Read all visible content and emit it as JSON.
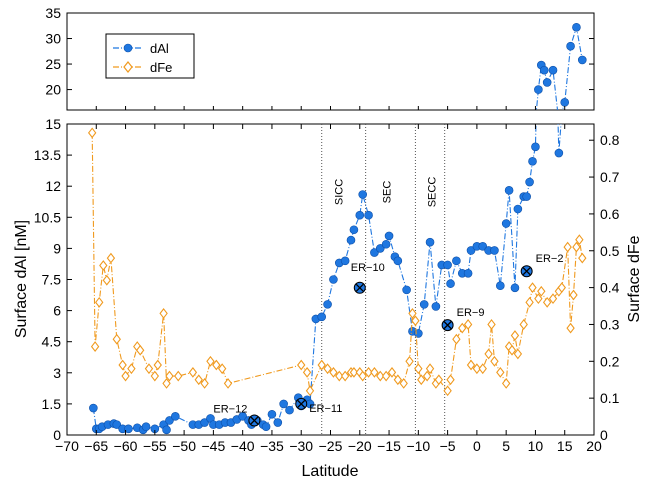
{
  "chart_data": {
    "type": "line",
    "panels": [
      "upper",
      "lower"
    ],
    "xlabel": "Latitude",
    "ylabel_left": "Surface dAl [nM]",
    "ylabel_right": "Surface dFe",
    "xlim": [
      -70,
      20
    ],
    "xticks": [
      -70,
      -65,
      -60,
      -55,
      -50,
      -45,
      -40,
      -35,
      -30,
      -25,
      -20,
      -15,
      -10,
      -5,
      0,
      5,
      10,
      15,
      20
    ],
    "x_tick_labels": [
      "−70",
      "−65",
      "−60",
      "−55",
      "−50",
      "−45",
      "−40",
      "−35",
      "−30",
      "−25",
      "−20",
      "−15",
      "−10",
      "−5",
      "0",
      "5",
      "10",
      "15",
      "20"
    ],
    "upper_ylim": [
      16,
      35
    ],
    "upper_yticks": [
      "20",
      "25",
      "30",
      "35"
    ],
    "lower_ylim": [
      0,
      15
    ],
    "lower_yticks": [
      "0",
      "1.5",
      "3",
      "4.5",
      "6",
      "7.5",
      "9",
      "10.5",
      "12",
      "13.5",
      "15"
    ],
    "right_ylim": [
      0,
      0.844
    ],
    "right_yticks": [
      "0",
      "0.1",
      "0.2",
      "0.3",
      "0.4",
      "0.5",
      "0.6",
      "0.7",
      "0.8"
    ],
    "legend": {
      "position": "top-left",
      "entries": [
        "dAl",
        "dFe"
      ]
    },
    "series": [
      {
        "name": "dAl",
        "axis": "left",
        "color": "#1f77e0",
        "marker": "circle",
        "linestyle": "dash-dot",
        "points": [
          [
            -65.5,
            1.3
          ],
          [
            -65,
            0.3
          ],
          [
            -64.5,
            0.3
          ],
          [
            -64,
            0.4
          ],
          [
            -63,
            0.5
          ],
          [
            -62,
            0.55
          ],
          [
            -61.5,
            0.5
          ],
          [
            -60.5,
            0.3
          ],
          [
            -59.5,
            0.3
          ],
          [
            -58,
            0.35
          ],
          [
            -57,
            0.25
          ],
          [
            -56.5,
            0.4
          ],
          [
            -55,
            0.3
          ],
          [
            -53.5,
            0.5
          ],
          [
            -53,
            0.25
          ],
          [
            -52.5,
            0.7
          ],
          [
            -51.5,
            0.9
          ],
          [
            -48.5,
            0.5
          ],
          [
            -47.5,
            0.5
          ],
          [
            -46.5,
            0.6
          ],
          [
            -45.5,
            0.8
          ],
          [
            -45,
            0.5
          ],
          [
            -44,
            0.5
          ],
          [
            -43,
            0.6
          ],
          [
            -42,
            0.6
          ],
          [
            -41,
            0.75
          ],
          [
            -40,
            0.9
          ],
          [
            -39,
            0.7
          ],
          [
            -38.5,
            0.5
          ],
          [
            -37.5,
            0.7
          ],
          [
            -36.5,
            0.5
          ],
          [
            -36,
            0.4
          ],
          [
            -35,
            1.0
          ],
          [
            -34,
            0.6
          ],
          [
            -33,
            1.5
          ],
          [
            -32,
            1.2
          ],
          [
            -30.5,
            1.8
          ],
          [
            -30,
            1.4
          ],
          [
            -29,
            1.7
          ],
          [
            -28.5,
            1.5
          ],
          [
            -27.5,
            5.6
          ],
          [
            -26.5,
            5.7
          ],
          [
            -25.5,
            6.3
          ],
          [
            -24.5,
            7.5
          ],
          [
            -23.5,
            8.3
          ],
          [
            -22.5,
            8.4
          ],
          [
            -21.5,
            9.4
          ],
          [
            -21,
            9.9
          ],
          [
            -20,
            10.6
          ],
          [
            -19.5,
            11.6
          ],
          [
            -18.5,
            10.6
          ],
          [
            -17.5,
            8.8
          ],
          [
            -16.5,
            9.0
          ],
          [
            -15.5,
            9.2
          ],
          [
            -15,
            9.6
          ],
          [
            -14,
            8.6
          ],
          [
            -13.5,
            8.4
          ],
          [
            -12,
            7.0
          ],
          [
            -11,
            5.0
          ],
          [
            -10,
            4.9
          ],
          [
            -9,
            6.3
          ],
          [
            -8,
            9.3
          ],
          [
            -7,
            6.2
          ],
          [
            -6,
            8.2
          ],
          [
            -5,
            8.2
          ],
          [
            -4.5,
            7.3
          ],
          [
            -3.5,
            8.4
          ],
          [
            -2.5,
            7.8
          ],
          [
            -1.5,
            7.8
          ],
          [
            -1,
            8.9
          ],
          [
            0,
            9.1
          ],
          [
            1,
            9.1
          ],
          [
            2,
            8.9
          ],
          [
            3,
            8.9
          ],
          [
            4,
            7.2
          ],
          [
            5,
            10.2
          ],
          [
            5.5,
            11.8
          ],
          [
            6.5,
            7.1
          ],
          [
            7,
            10.9
          ],
          [
            8,
            11.5
          ],
          [
            8.5,
            11.5
          ],
          [
            9,
            12.2
          ],
          [
            9.5,
            13.2
          ],
          [
            10,
            13.9
          ],
          [
            10.5,
            20
          ],
          [
            11,
            24.8
          ],
          [
            11.5,
            23.8
          ],
          [
            12,
            21.4
          ],
          [
            13,
            23.8
          ],
          [
            14,
            13.6
          ],
          [
            15,
            17.5
          ],
          [
            16,
            28.5
          ],
          [
            17,
            32.2
          ],
          [
            18,
            25.8
          ]
        ]
      },
      {
        "name": "dFe",
        "axis": "right",
        "color": "#f09a1f",
        "marker": "diamond",
        "linestyle": "dash-dot",
        "points": [
          [
            -65.7,
            0.82
          ],
          [
            -65.2,
            0.24
          ],
          [
            -64.5,
            0.36
          ],
          [
            -63.8,
            0.46
          ],
          [
            -63.2,
            0.42
          ],
          [
            -62.5,
            0.48
          ],
          [
            -61.5,
            0.26
          ],
          [
            -60.5,
            0.19
          ],
          [
            -60,
            0.16
          ],
          [
            -59,
            0.18
          ],
          [
            -58,
            0.24
          ],
          [
            -57.5,
            0.23
          ],
          [
            -56,
            0.18
          ],
          [
            -55,
            0.16
          ],
          [
            -54.5,
            0.19
          ],
          [
            -53.5,
            0.33
          ],
          [
            -53,
            0.14
          ],
          [
            -52.5,
            0.16
          ],
          [
            -51,
            0.16
          ],
          [
            -48.5,
            0.17
          ],
          [
            -47.5,
            0.15
          ],
          [
            -46.5,
            0.14
          ],
          [
            -45.5,
            0.2
          ],
          [
            -44.5,
            0.19
          ],
          [
            -43.5,
            0.18
          ],
          [
            -42.5,
            0.14
          ],
          [
            -30,
            0.19
          ],
          [
            -29,
            0.17
          ],
          [
            -28.5,
            0.12
          ],
          [
            -26.5,
            0.19
          ],
          [
            -25.5,
            0.18
          ],
          [
            -24.5,
            0.17
          ],
          [
            -23.5,
            0.16
          ],
          [
            -22.5,
            0.16
          ],
          [
            -21.5,
            0.17
          ],
          [
            -21,
            0.17
          ],
          [
            -20,
            0.17
          ],
          [
            -19.5,
            0.16
          ],
          [
            -18.5,
            0.17
          ],
          [
            -17.5,
            0.17
          ],
          [
            -16.5,
            0.16
          ],
          [
            -15.5,
            0.16
          ],
          [
            -14.5,
            0.17
          ],
          [
            -13.5,
            0.15
          ],
          [
            -12.5,
            0.14
          ],
          [
            -11.5,
            0.2
          ],
          [
            -11,
            0.33
          ],
          [
            -10.5,
            0.31
          ],
          [
            -10,
            0.18
          ],
          [
            -9.5,
            0.15
          ],
          [
            -8.5,
            0.16
          ],
          [
            -8,
            0.18
          ],
          [
            -7,
            0.14
          ],
          [
            -6.5,
            0.15
          ],
          [
            -5,
            0.12
          ],
          [
            -4.5,
            0.15
          ],
          [
            -3.5,
            0.26
          ],
          [
            -2.5,
            0.29
          ],
          [
            -1.5,
            0.3
          ],
          [
            -1,
            0.19
          ],
          [
            0,
            0.18
          ],
          [
            1,
            0.18
          ],
          [
            2,
            0.22
          ],
          [
            2.5,
            0.3
          ],
          [
            3,
            0.2
          ],
          [
            4,
            0.17
          ],
          [
            5,
            0.14
          ],
          [
            5.5,
            0.24
          ],
          [
            6,
            0.23
          ],
          [
            6.5,
            0.27
          ],
          [
            7,
            0.22
          ],
          [
            8,
            0.3
          ],
          [
            9,
            0.36
          ],
          [
            9.5,
            0.4
          ],
          [
            10.5,
            0.37
          ],
          [
            11,
            0.39
          ],
          [
            12,
            0.36
          ],
          [
            13,
            0.37
          ],
          [
            14,
            0.39
          ],
          [
            14.5,
            0.4
          ],
          [
            15.5,
            0.51
          ],
          [
            16,
            0.29
          ],
          [
            16.5,
            0.38
          ],
          [
            17,
            0.51
          ],
          [
            17.5,
            0.53
          ],
          [
            18,
            0.48
          ]
        ]
      }
    ],
    "stations": [
      {
        "label": "ER−12",
        "lat": -38,
        "dAl": 0.7
      },
      {
        "label": "ER−11",
        "lat": -30,
        "dAl": 1.5
      },
      {
        "label": "ER−10",
        "lat": -20,
        "dAl": 7.1
      },
      {
        "label": "ER−9",
        "lat": -5,
        "dAl": 5.3
      },
      {
        "label": "ER−2",
        "lat": 8.5,
        "dAl": 7.9
      }
    ],
    "fronts": [
      {
        "label": "SICC",
        "lat": -26.5
      },
      {
        "label": "SEC",
        "lat": -19
      },
      {
        "label": "SECC",
        "lat": -10.5
      },
      {
        "label": "",
        "lat": -5.5
      }
    ]
  }
}
